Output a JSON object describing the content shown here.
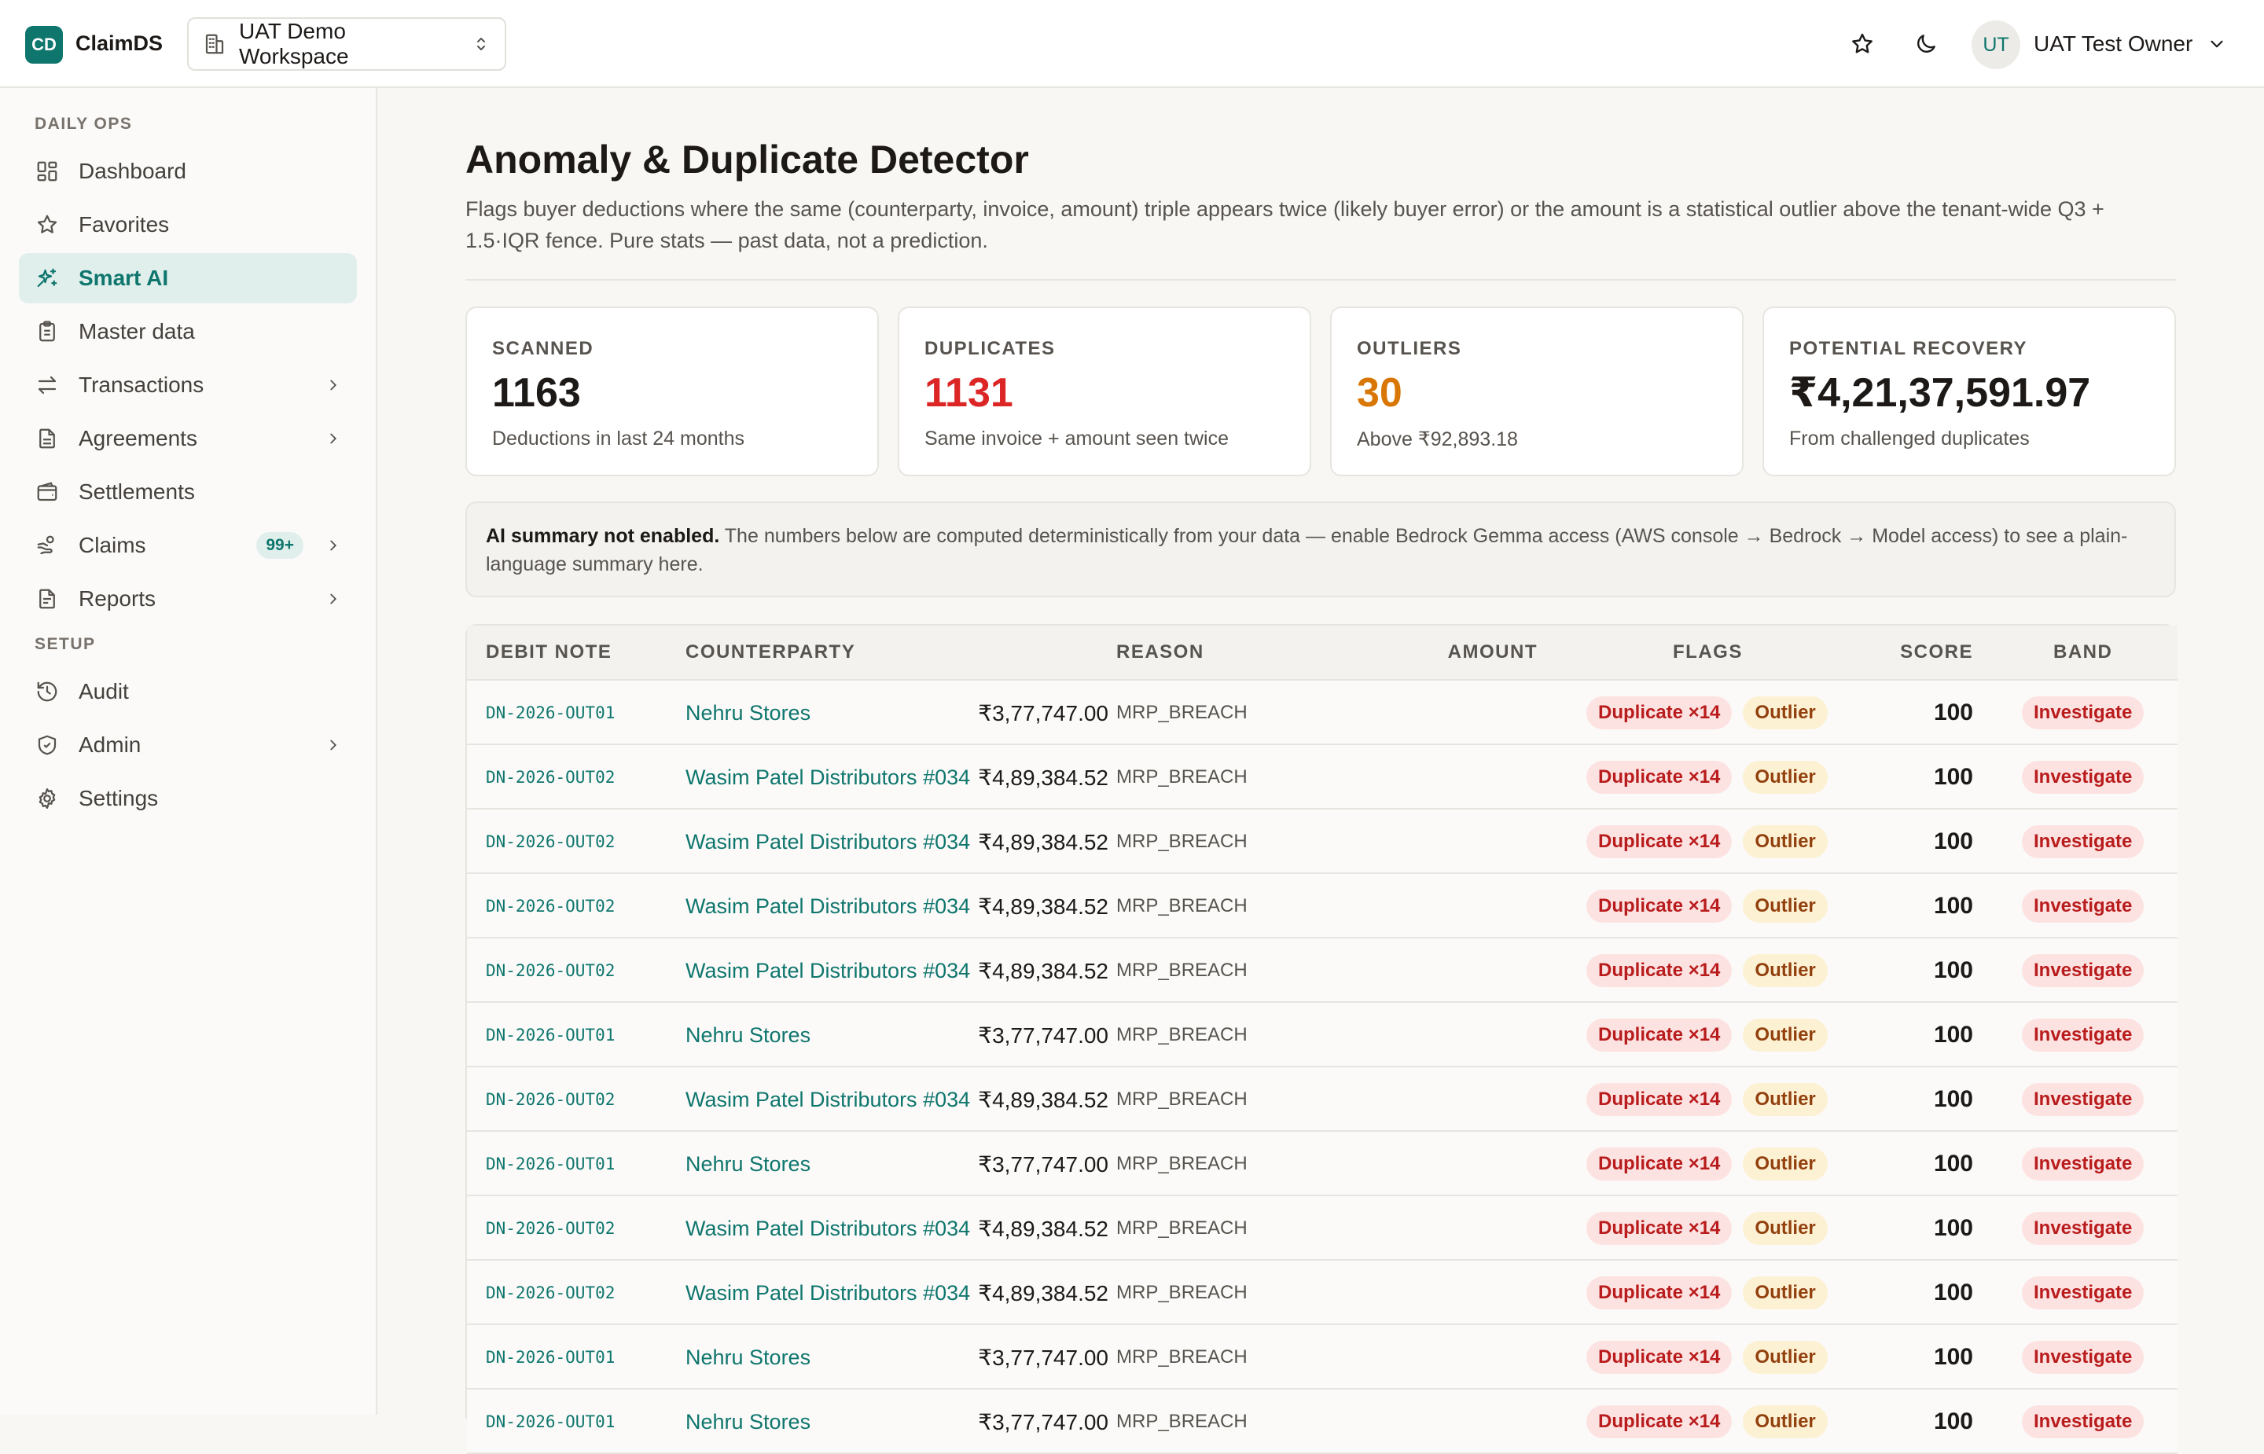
{
  "app": {
    "logo_initials": "CD",
    "name": "ClaimDS"
  },
  "workspace": {
    "label": "UAT Demo Workspace"
  },
  "user": {
    "initials": "UT",
    "name": "UAT Test Owner"
  },
  "sidebar": {
    "sections": [
      {
        "label": "DAILY OPS"
      },
      {
        "label": "SETUP"
      }
    ],
    "items": [
      {
        "label": "Dashboard",
        "icon": "dashboard-icon"
      },
      {
        "label": "Favorites",
        "icon": "star-icon"
      },
      {
        "label": "Smart AI",
        "icon": "sparkle-icon",
        "active": true
      },
      {
        "label": "Master data",
        "icon": "clipboard-icon"
      },
      {
        "label": "Transactions",
        "icon": "swap-icon",
        "expandable": true
      },
      {
        "label": "Agreements",
        "icon": "document-icon",
        "expandable": true
      },
      {
        "label": "Settlements",
        "icon": "wallet-icon"
      },
      {
        "label": "Claims",
        "icon": "hand-coin-icon",
        "badge": "99+",
        "expandable": true
      },
      {
        "label": "Reports",
        "icon": "report-icon",
        "expandable": true
      },
      {
        "label": "Audit",
        "icon": "history-icon"
      },
      {
        "label": "Admin",
        "icon": "shield-icon",
        "expandable": true
      },
      {
        "label": "Settings",
        "icon": "gear-icon"
      }
    ]
  },
  "page": {
    "title": "Anomaly & Duplicate Detector",
    "description": "Flags buyer deductions where the same (counterparty, invoice, amount) triple appears twice (likely buyer error) or the amount is a statistical outlier above the tenant-wide Q3 + 1.5·IQR fence. Pure stats — past data, not a prediction."
  },
  "stats": [
    {
      "label": "SCANNED",
      "value": "1163",
      "sub": "Deductions in last 24 months",
      "color": "#1c1917"
    },
    {
      "label": "DUPLICATES",
      "value": "1131",
      "sub": "Same invoice + amount seen twice",
      "color": "#dc2626"
    },
    {
      "label": "OUTLIERS",
      "value": "30",
      "sub": "Above ₹92,893.18",
      "color": "#d97706"
    },
    {
      "label": "POTENTIAL RECOVERY",
      "value": "₹4,21,37,591.97",
      "sub": "From challenged duplicates",
      "color": "#1c1917"
    }
  ],
  "notice": {
    "bold": "AI summary not enabled.",
    "text": " The numbers below are computed deterministically from your data — enable Bedrock Gemma access (AWS console → Bedrock → Model access) to see a plain-language summary here."
  },
  "table": {
    "headers": {
      "debit_note": "DEBIT NOTE",
      "counterparty": "COUNTERPARTY",
      "reason": "REASON",
      "amount": "AMOUNT",
      "flags": "FLAGS",
      "score": "SCORE",
      "band": "BAND"
    },
    "rows": [
      {
        "debit_note": "DN-2026-OUT01",
        "counterparty": "Nehru Stores",
        "reason": "MRP_BREACH",
        "amount": "₹3,77,747.00",
        "flag_dup": "Duplicate ×14",
        "flag_out": "Outlier",
        "score": "100",
        "band": "Investigate"
      },
      {
        "debit_note": "DN-2026-OUT02",
        "counterparty": "Wasim Patel Distributors #034",
        "reason": "MRP_BREACH",
        "amount": "₹4,89,384.52",
        "flag_dup": "Duplicate ×14",
        "flag_out": "Outlier",
        "score": "100",
        "band": "Investigate"
      },
      {
        "debit_note": "DN-2026-OUT02",
        "counterparty": "Wasim Patel Distributors #034",
        "reason": "MRP_BREACH",
        "amount": "₹4,89,384.52",
        "flag_dup": "Duplicate ×14",
        "flag_out": "Outlier",
        "score": "100",
        "band": "Investigate"
      },
      {
        "debit_note": "DN-2026-OUT02",
        "counterparty": "Wasim Patel Distributors #034",
        "reason": "MRP_BREACH",
        "amount": "₹4,89,384.52",
        "flag_dup": "Duplicate ×14",
        "flag_out": "Outlier",
        "score": "100",
        "band": "Investigate"
      },
      {
        "debit_note": "DN-2026-OUT02",
        "counterparty": "Wasim Patel Distributors #034",
        "reason": "MRP_BREACH",
        "amount": "₹4,89,384.52",
        "flag_dup": "Duplicate ×14",
        "flag_out": "Outlier",
        "score": "100",
        "band": "Investigate"
      },
      {
        "debit_note": "DN-2026-OUT01",
        "counterparty": "Nehru Stores",
        "reason": "MRP_BREACH",
        "amount": "₹3,77,747.00",
        "flag_dup": "Duplicate ×14",
        "flag_out": "Outlier",
        "score": "100",
        "band": "Investigate"
      },
      {
        "debit_note": "DN-2026-OUT02",
        "counterparty": "Wasim Patel Distributors #034",
        "reason": "MRP_BREACH",
        "amount": "₹4,89,384.52",
        "flag_dup": "Duplicate ×14",
        "flag_out": "Outlier",
        "score": "100",
        "band": "Investigate"
      },
      {
        "debit_note": "DN-2026-OUT01",
        "counterparty": "Nehru Stores",
        "reason": "MRP_BREACH",
        "amount": "₹3,77,747.00",
        "flag_dup": "Duplicate ×14",
        "flag_out": "Outlier",
        "score": "100",
        "band": "Investigate"
      },
      {
        "debit_note": "DN-2026-OUT02",
        "counterparty": "Wasim Patel Distributors #034",
        "reason": "MRP_BREACH",
        "amount": "₹4,89,384.52",
        "flag_dup": "Duplicate ×14",
        "flag_out": "Outlier",
        "score": "100",
        "band": "Investigate"
      },
      {
        "debit_note": "DN-2026-OUT02",
        "counterparty": "Wasim Patel Distributors #034",
        "reason": "MRP_BREACH",
        "amount": "₹4,89,384.52",
        "flag_dup": "Duplicate ×14",
        "flag_out": "Outlier",
        "score": "100",
        "band": "Investigate"
      },
      {
        "debit_note": "DN-2026-OUT01",
        "counterparty": "Nehru Stores",
        "reason": "MRP_BREACH",
        "amount": "₹3,77,747.00",
        "flag_dup": "Duplicate ×14",
        "flag_out": "Outlier",
        "score": "100",
        "band": "Investigate"
      },
      {
        "debit_note": "DN-2026-OUT01",
        "counterparty": "Nehru Stores",
        "reason": "MRP_BREACH",
        "amount": "₹3,77,747.00",
        "flag_dup": "Duplicate ×14",
        "flag_out": "Outlier",
        "score": "100",
        "band": "Investigate"
      }
    ]
  }
}
